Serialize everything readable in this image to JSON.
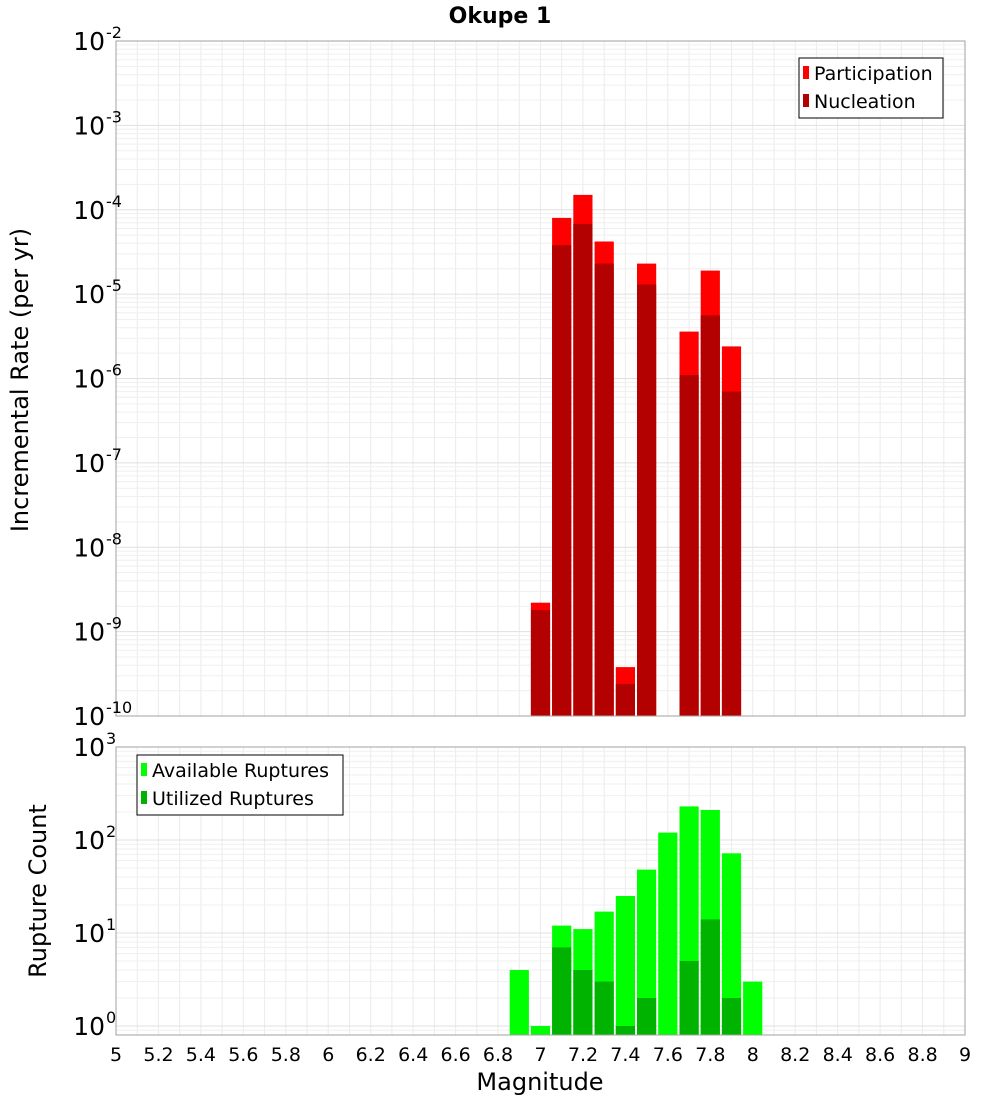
{
  "chart_data": [
    {
      "type": "bar",
      "title": "Okupe 1",
      "xlabel": "",
      "ylabel": "Incremental Rate (per yr)",
      "yscale": "log",
      "ylim": [
        1e-10,
        0.01
      ],
      "xlim": [
        5,
        9
      ],
      "grid": true,
      "legend_position": "top-right",
      "bar_width": 0.1,
      "y_ticks": [
        {
          "value": 1e-10,
          "base": "10",
          "exp": "-10"
        },
        {
          "value": 1e-09,
          "base": "10",
          "exp": "-9"
        },
        {
          "value": 1e-08,
          "base": "10",
          "exp": "-8"
        },
        {
          "value": 1e-07,
          "base": "10",
          "exp": "-7"
        },
        {
          "value": 1e-06,
          "base": "10",
          "exp": "-6"
        },
        {
          "value": 1e-05,
          "base": "10",
          "exp": "-5"
        },
        {
          "value": 0.0001,
          "base": "10",
          "exp": "-4"
        },
        {
          "value": 0.001,
          "base": "10",
          "exp": "-3"
        },
        {
          "value": 0.01,
          "base": "10",
          "exp": "-2"
        }
      ],
      "x": [
        7.0,
        7.1,
        7.2,
        7.3,
        7.4,
        7.5,
        7.6,
        7.7,
        7.8,
        7.9
      ],
      "series": [
        {
          "name": "Participation",
          "color": "#ff0000",
          "values": [
            2.2e-09,
            8e-05,
            0.00015,
            4.2e-05,
            3.8e-10,
            2.3e-05,
            null,
            3.6e-06,
            1.9e-05,
            2.4e-06
          ]
        },
        {
          "name": "Nucleation",
          "color": "#b30000",
          "values": [
            1.8e-09,
            3.8e-05,
            6.8e-05,
            2.3e-05,
            2.4e-10,
            1.3e-05,
            null,
            1.1e-06,
            5.6e-06,
            7e-07
          ]
        }
      ]
    },
    {
      "type": "bar",
      "title": "",
      "xlabel": "Magnitude",
      "ylabel": "Rupture Count",
      "yscale": "log",
      "ylim": [
        0.8,
        1000
      ],
      "xlim": [
        5,
        9
      ],
      "grid": true,
      "legend_position": "top-left",
      "bar_width": 0.1,
      "y_ticks": [
        {
          "value": 1,
          "base": "10",
          "exp": "0"
        },
        {
          "value": 10,
          "base": "10",
          "exp": "1"
        },
        {
          "value": 100,
          "base": "10",
          "exp": "2"
        },
        {
          "value": 1000,
          "base": "10",
          "exp": "3"
        }
      ],
      "x_tick_labels": [
        "5",
        "5.2",
        "5.4",
        "5.6",
        "5.8",
        "6",
        "6.2",
        "6.4",
        "6.6",
        "6.8",
        "7",
        "7.2",
        "7.4",
        "7.6",
        "7.8",
        "8",
        "8.2",
        "8.4",
        "8.6",
        "8.8",
        "9"
      ],
      "x": [
        6.9,
        7.0,
        7.1,
        7.2,
        7.3,
        7.4,
        7.5,
        7.6,
        7.7,
        7.8,
        7.9,
        8.0
      ],
      "series": [
        {
          "name": "Available Ruptures",
          "color": "#00ff00",
          "values": [
            4,
            1,
            12,
            11,
            17,
            25,
            48,
            120,
            230,
            210,
            72,
            3
          ]
        },
        {
          "name": "Utilized Ruptures",
          "color": "#00b300",
          "values": [
            null,
            null,
            7,
            4,
            3,
            1,
            2,
            null,
            5,
            14,
            2,
            null
          ]
        }
      ]
    }
  ]
}
